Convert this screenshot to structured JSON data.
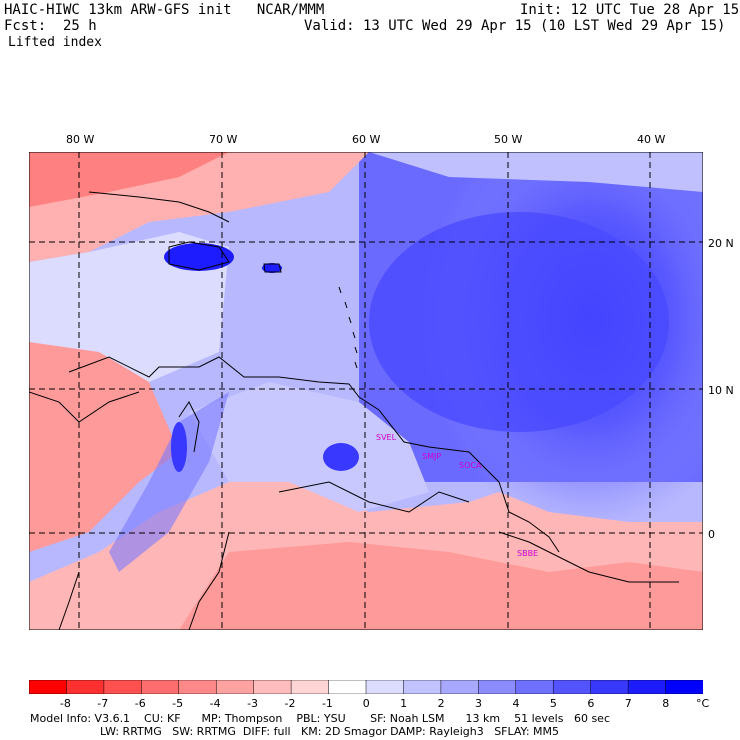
{
  "header": {
    "title_left": "HAIC-HIWC 13km ARW-GFS init   NCAR/MMM",
    "init": "Init: 12 UTC Tue 28 Apr 15",
    "fcst": "Fcst:  25 h",
    "valid": "Valid: 13 UTC Wed 29 Apr 15 (10 LST Wed 29 Apr 15)",
    "field": "Lifted index"
  },
  "map": {
    "lon_labels": [
      "80 W",
      "70 W",
      "60 W",
      "50 W",
      "40 W"
    ],
    "lat_labels": [
      "20 N",
      "10 N",
      "0"
    ],
    "stations": [
      "SVEL",
      "SMJP",
      "SOCA",
      "SBBE"
    ]
  },
  "colorbar": {
    "labels": [
      "-8",
      "-7",
      "-6",
      "-5",
      "-4",
      "-3",
      "-2",
      "-1",
      "0",
      "1",
      "2",
      "3",
      "4",
      "5",
      "6",
      "7",
      "8"
    ],
    "unit": "°C",
    "colors": [
      "#ff0000",
      "#ff3030",
      "#ff5050",
      "#ff6e6e",
      "#ff8888",
      "#ffa2a2",
      "#ffbcbc",
      "#ffd4d4",
      "#ffffff",
      "#dcdcff",
      "#c2c2ff",
      "#a8a8ff",
      "#8c8cff",
      "#7070ff",
      "#5454ff",
      "#3838ff",
      "#1c1cff",
      "#0000ff"
    ]
  },
  "footer": {
    "line1": "Model Info: V3.6.1    CU: KF      MP: Thompson    PBL: YSU       SF: Noah LSM      13 km    51 levels   60 sec",
    "line2": "LW: RRTMG   SW: RRTMG  DIFF: full   KM: 2D Smagor DAMP: Rayleigh3   SFLAY: MM5"
  }
}
